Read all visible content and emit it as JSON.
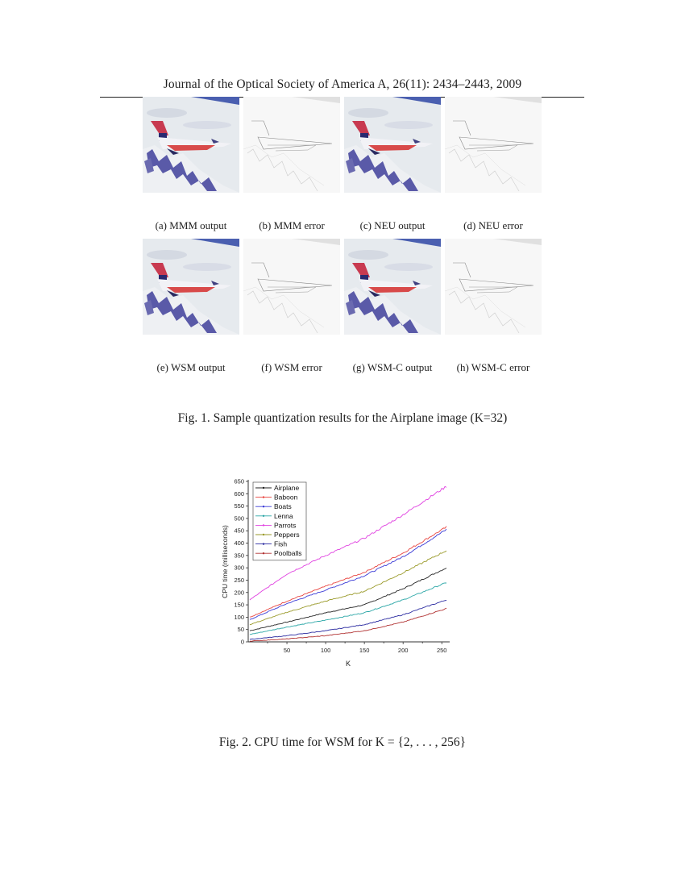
{
  "header": {
    "journal_line": "Journal of the Optical Society of America A, 26(11): 2434–2443, 2009"
  },
  "figure1": {
    "panels": [
      {
        "label": "(a) MMM output",
        "kind": "output"
      },
      {
        "label": "(b) MMM error",
        "kind": "error"
      },
      {
        "label": "(c) NEU output",
        "kind": "output"
      },
      {
        "label": "(d) NEU error",
        "kind": "error"
      },
      {
        "label": "(e) WSM output",
        "kind": "output"
      },
      {
        "label": "(f) WSM error",
        "kind": "error"
      },
      {
        "label": "(g) WSM-C output",
        "kind": "output"
      },
      {
        "label": "(h) WSM-C error",
        "kind": "error"
      }
    ],
    "caption": "Fig. 1. Sample quantization results for the Airplane image (K=32)"
  },
  "figure2": {
    "caption_prefix": "Fig. 2.  CPU time for WSM for ",
    "caption_math": "K = {2, . . . , 256}"
  },
  "chart_data": {
    "type": "line",
    "title": "",
    "xlabel": "K",
    "ylabel": "CPU time (milliseconds)",
    "xlim": [
      2,
      256
    ],
    "ylim": [
      0,
      650
    ],
    "x_ticks": [
      50,
      100,
      150,
      200,
      250
    ],
    "y_ticks": [
      0,
      50,
      100,
      150,
      200,
      250,
      300,
      350,
      400,
      450,
      500,
      550,
      600,
      650
    ],
    "grid": false,
    "legend_position": "upper-left",
    "x": [
      2,
      50,
      100,
      150,
      200,
      256
    ],
    "series": [
      {
        "name": "Airplane",
        "color": "#222222",
        "values": [
          45,
          80,
          118,
          150,
          215,
          300
        ]
      },
      {
        "name": "Baboon",
        "color": "#e8413c",
        "values": [
          100,
          165,
          225,
          282,
          360,
          465
        ]
      },
      {
        "name": "Boats",
        "color": "#3a3ad6",
        "values": [
          90,
          155,
          210,
          268,
          345,
          455
        ]
      },
      {
        "name": "Lenna",
        "color": "#2aa6a6",
        "values": [
          30,
          60,
          88,
          118,
          170,
          240
        ]
      },
      {
        "name": "Parrots",
        "color": "#e040e0",
        "values": [
          170,
          275,
          350,
          420,
          515,
          630
        ]
      },
      {
        "name": "Peppers",
        "color": "#9a9a2a",
        "values": [
          70,
          120,
          165,
          205,
          280,
          370
        ]
      },
      {
        "name": "Fish",
        "color": "#2a2aa0",
        "values": [
          10,
          25,
          45,
          70,
          110,
          170
        ]
      },
      {
        "name": "Poolballs",
        "color": "#b03030",
        "values": [
          3,
          12,
          25,
          45,
          80,
          135
        ]
      }
    ]
  }
}
